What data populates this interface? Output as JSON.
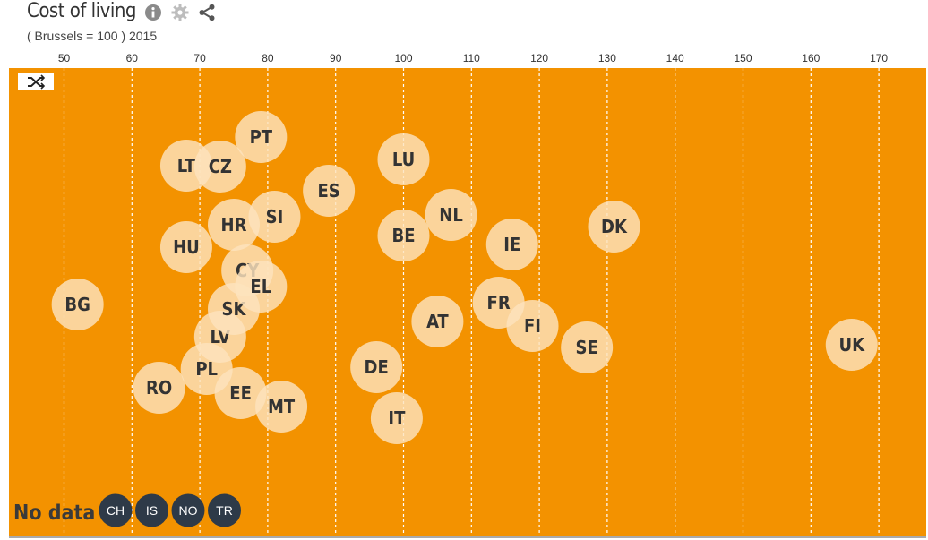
{
  "header": {
    "title": "Cost of living",
    "subtitle": "( Brussels = 100 ) 2015",
    "icons": [
      "info-icon",
      "gear-icon",
      "share-icon"
    ]
  },
  "shuffle_button": {
    "icon": "shuffle-icon"
  },
  "colors": {
    "plot_bg": "#f39200",
    "bubble": "#fce3bd",
    "bubble_text": "#333333",
    "nodata_bubble": "#2e3a48",
    "nodata_text": "#ffffff",
    "grid": "#ffffff",
    "nodata_label": "#3a3a3a"
  },
  "chart_data": {
    "type": "scatter",
    "title": "Cost of living",
    "subtitle": "( Brussels = 100 ) 2015",
    "xlim": [
      45,
      172
    ],
    "xticks": [
      50,
      60,
      70,
      80,
      90,
      100,
      110,
      120,
      130,
      140,
      150,
      160,
      170
    ],
    "grid": true,
    "points": [
      {
        "label": "BG",
        "x": 52
      },
      {
        "label": "RO",
        "x": 64
      },
      {
        "label": "HU",
        "x": 68
      },
      {
        "label": "LT",
        "x": 68
      },
      {
        "label": "PL",
        "x": 71
      },
      {
        "label": "LV",
        "x": 73
      },
      {
        "label": "CZ",
        "x": 73
      },
      {
        "label": "HR",
        "x": 75
      },
      {
        "label": "SK",
        "x": 75
      },
      {
        "label": "EE",
        "x": 76
      },
      {
        "label": "CY",
        "x": 77
      },
      {
        "label": "PT",
        "x": 79
      },
      {
        "label": "EL",
        "x": 79
      },
      {
        "label": "SI",
        "x": 81
      },
      {
        "label": "MT",
        "x": 82
      },
      {
        "label": "ES",
        "x": 89
      },
      {
        "label": "DE",
        "x": 96
      },
      {
        "label": "IT",
        "x": 99
      },
      {
        "label": "LU",
        "x": 100
      },
      {
        "label": "BE",
        "x": 100
      },
      {
        "label": "AT",
        "x": 105
      },
      {
        "label": "NL",
        "x": 107
      },
      {
        "label": "FR",
        "x": 114
      },
      {
        "label": "IE",
        "x": 116
      },
      {
        "label": "FI",
        "x": 119
      },
      {
        "label": "SE",
        "x": 127
      },
      {
        "label": "DK",
        "x": 131
      },
      {
        "label": "UK",
        "x": 166
      }
    ],
    "no_data_label": "No data",
    "no_data": [
      "CH",
      "IS",
      "NO",
      "TR"
    ]
  }
}
